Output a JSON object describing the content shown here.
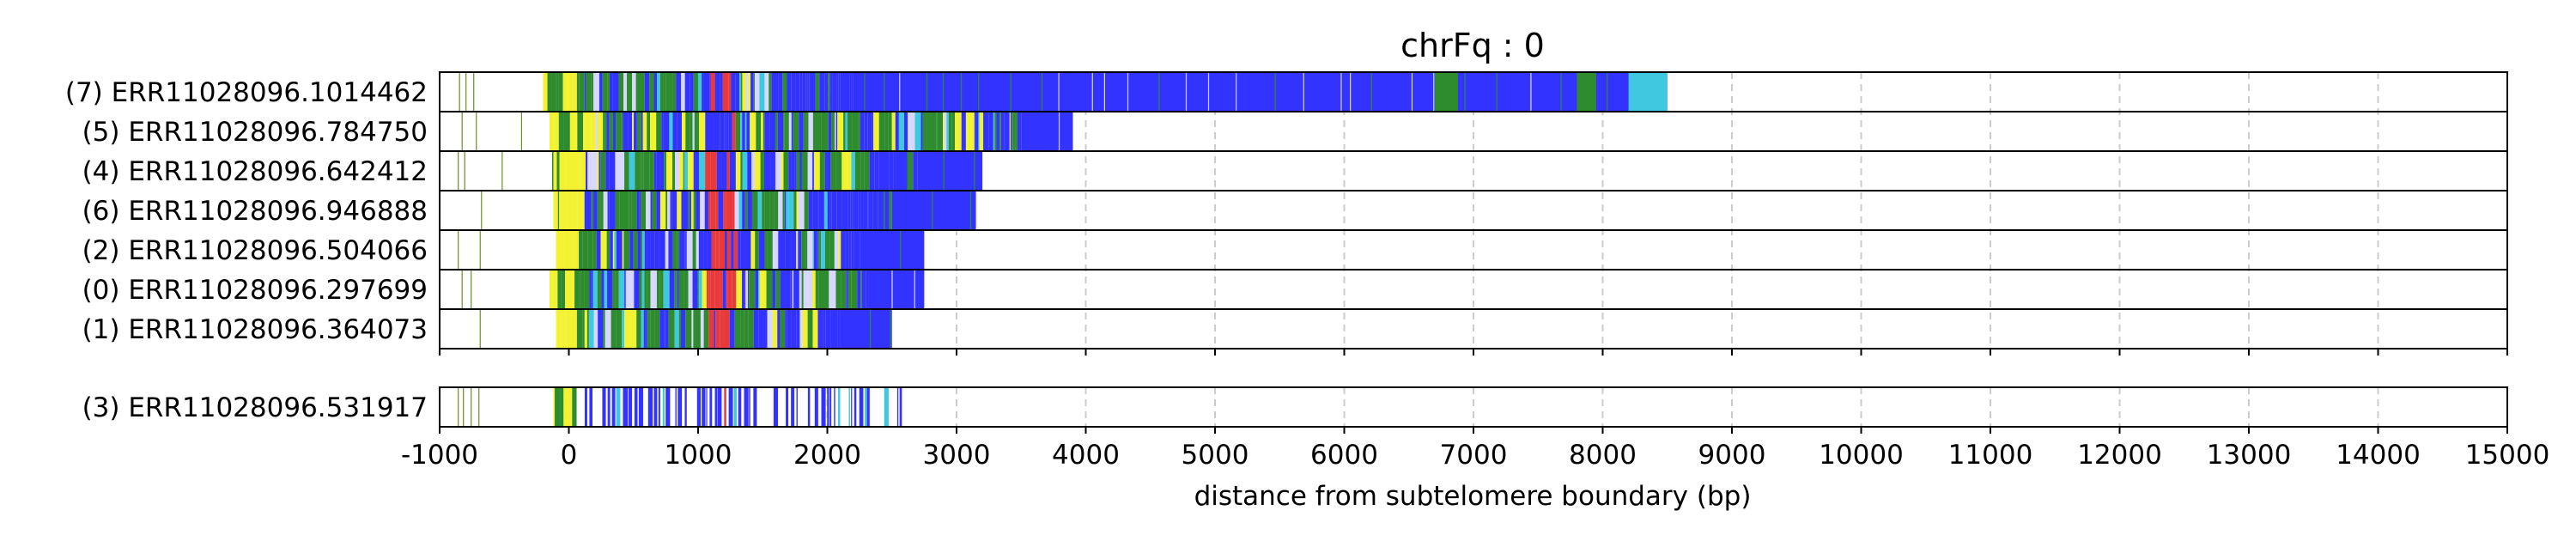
{
  "chart_data": {
    "type": "bar",
    "title": "chrFq : 0",
    "xlabel": "distance from subtelomere boundary (bp)",
    "ylabel": "",
    "xlim": [
      -1000,
      15000
    ],
    "xticks": [
      "-1000",
      "0",
      "1000",
      "2000",
      "3000",
      "4000",
      "5000",
      "6000",
      "7000",
      "8000",
      "9000",
      "10000",
      "11000",
      "12000",
      "13000",
      "14000",
      "15000"
    ],
    "grid": "vertical dashed at ticks",
    "colors": {
      "blue": "#3333ff",
      "green": "#2e8b2e",
      "yellow": "#f2f230",
      "red": "#e83a3a",
      "light": "#d8d8ff",
      "cyan": "#40c8e0",
      "olive": "#6b8e23",
      "frame": "#000000",
      "grid": "#cccccc"
    },
    "groups": [
      {
        "reads": [
          {
            "label": "(7) ERR11028096.1014462",
            "start": -200,
            "end": 8500,
            "blue_start": 2200,
            "green_to": 1600,
            "tail": [
              [
                6700,
                6880,
                "green"
              ],
              [
                7800,
                7950,
                "green"
              ],
              [
                8200,
                8500,
                "cyan"
              ]
            ],
            "stray": [
              -850,
              -800,
              -740
            ]
          },
          {
            "label": "(5) ERR11028096.784750",
            "start": -150,
            "end": 3900,
            "blue_start": 3500,
            "green_to": 3500,
            "tail": [],
            "stray": [
              -830,
              -720,
              -370
            ]
          },
          {
            "label": "(4) ERR11028096.642412",
            "start": -130,
            "end": 3200,
            "blue_start": 2700,
            "green_to": 2300,
            "tail": [],
            "stray": [
              -860,
              -810,
              -520
            ]
          },
          {
            "label": "(6) ERR11028096.946888",
            "start": -120,
            "end": 3150,
            "blue_start": 2500,
            "green_to": 2000,
            "tail": [],
            "stray": [
              -680
            ]
          },
          {
            "label": "(2) ERR11028096.504066",
            "start": -100,
            "end": 2750,
            "blue_start": 2250,
            "green_to": 2100,
            "tail": [],
            "stray": [
              -860,
              -690
            ]
          },
          {
            "label": "(0) ERR11028096.297699",
            "start": -150,
            "end": 2750,
            "blue_start": 2300,
            "green_to": 2200,
            "tail": [],
            "stray": [
              -830,
              -760
            ]
          },
          {
            "label": "(1) ERR11028096.364073",
            "start": -100,
            "end": 2500,
            "blue_start": 2100,
            "green_to": 1900,
            "tail": [],
            "stray": [
              -690
            ]
          }
        ]
      },
      {
        "reads": [
          {
            "label": "(3) ERR11028096.531917",
            "start": -120,
            "end": 2600,
            "blue_start": 100,
            "green_to": 80,
            "sparse": true,
            "tail": [],
            "stray": [
              -860,
              -820,
              -760,
              -700
            ]
          }
        ]
      }
    ]
  }
}
